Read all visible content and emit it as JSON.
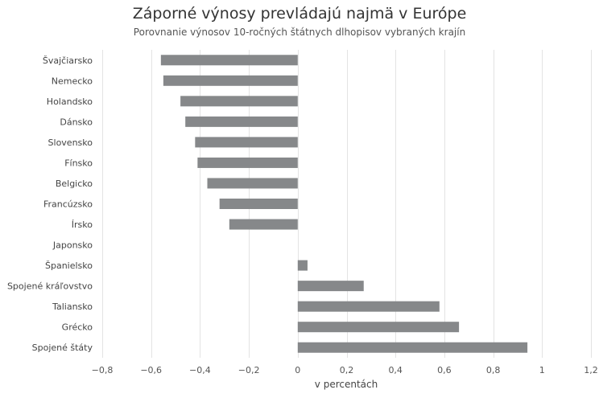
{
  "chart_data": {
    "type": "bar",
    "orientation": "horizontal",
    "title": "Záporné výnosy prevládajú najmä v Európe",
    "subtitle": "Porovnanie výnosov 10-ročných štátnych dlhopisov vybraných krajín",
    "xlabel": "v percentách",
    "ylabel": "",
    "categories": [
      "Švajčiarsko",
      "Nemecko",
      "Holandsko",
      "Dánsko",
      "Slovensko",
      "Fínsko",
      "Belgicko",
      "Francúzsko",
      "Írsko",
      "Japonsko",
      "Španielsko",
      "Spojené kráľovstvo",
      "Taliansko",
      "Grécko",
      "Spojené štáty"
    ],
    "values": [
      -0.56,
      -0.55,
      -0.48,
      -0.46,
      -0.42,
      -0.41,
      -0.37,
      -0.32,
      -0.28,
      0.0,
      0.04,
      0.27,
      0.58,
      0.66,
      0.94
    ],
    "xlim": [
      -0.8,
      1.2
    ],
    "xticks": [
      -0.8,
      -0.6,
      -0.4,
      -0.2,
      0,
      0.2,
      0.4,
      0.6,
      0.8,
      1,
      1.2
    ],
    "xtick_labels": [
      "−0,8",
      "−0,6",
      "−0,4",
      "−0,2",
      "0",
      "0,2",
      "0,4",
      "0,6",
      "0,8",
      "1",
      "1,2"
    ],
    "grid": "vertical",
    "legend": "none",
    "bar_color": "#86888a"
  }
}
